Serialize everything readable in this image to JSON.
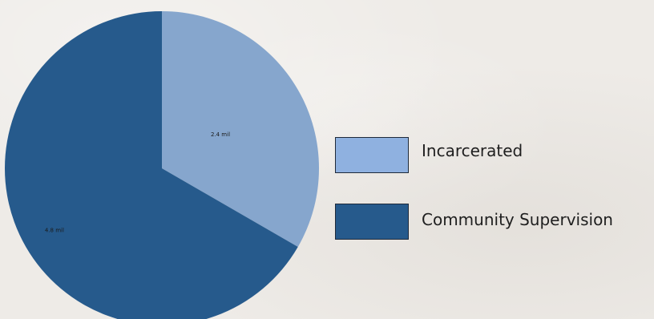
{
  "chart_data": {
    "type": "pie",
    "title": "",
    "series": [
      {
        "categories": [
          "Incarcerated",
          "Community Supervision"
        ],
        "values": [
          2.4,
          4.8
        ],
        "data_labels": [
          "2.4 mil",
          "4.8 mil"
        ],
        "colors": [
          "#86a6cd",
          "#265a8c"
        ]
      }
    ],
    "legend": {
      "placement": "right",
      "entries": [
        "Incarcerated",
        "Community Supervision"
      ],
      "swatch_colors": [
        "#8fb1e0",
        "#265a8c"
      ]
    },
    "start_angle_degrees": 0,
    "direction": "clockwise"
  }
}
